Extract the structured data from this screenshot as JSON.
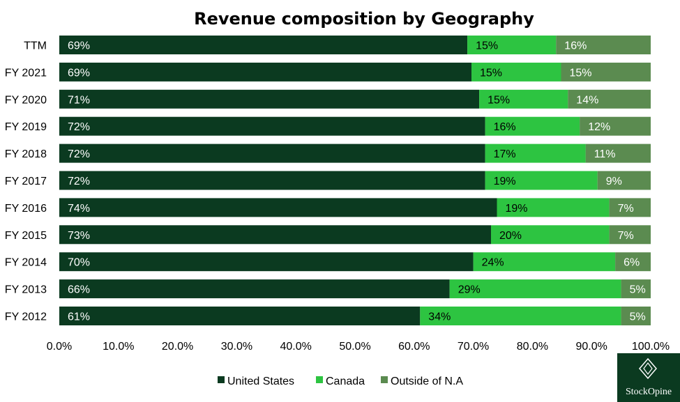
{
  "chart_data": {
    "type": "bar",
    "orientation": "horizontal",
    "stacked": "percent",
    "title": "Revenue composition by Geography",
    "categories": [
      "TTM",
      "FY 2021",
      "FY 2020",
      "FY 2019",
      "FY 2018",
      "FY 2017",
      "FY 2016",
      "FY 2015",
      "FY 2014",
      "FY 2013",
      "FY 2012"
    ],
    "series": [
      {
        "name": "United States",
        "color": "#0b3a20",
        "label_color": "#ffffff",
        "values": [
          69,
          69,
          71,
          72,
          72,
          72,
          74,
          73,
          70,
          66,
          61
        ],
        "labels": [
          "69%",
          "69%",
          "71%",
          "72%",
          "72%",
          "72%",
          "74%",
          "73%",
          "70%",
          "66%",
          "61%"
        ]
      },
      {
        "name": "Canada",
        "color": "#2dc441",
        "label_color": "#000000",
        "values": [
          15,
          15,
          15,
          16,
          17,
          19,
          19,
          20,
          24,
          29,
          34
        ],
        "labels": [
          "15%",
          "15%",
          "15%",
          "16%",
          "17%",
          "19%",
          "19%",
          "20%",
          "24%",
          "29%",
          "34%"
        ]
      },
      {
        "name": "Outside of N.A",
        "color": "#5b8b50",
        "label_color": "#ffffff",
        "values": [
          16,
          15,
          14,
          12,
          11,
          9,
          7,
          7,
          6,
          5,
          5
        ],
        "labels": [
          "16%",
          "15%",
          "14%",
          "12%",
          "11%",
          "9%",
          "7%",
          "7%",
          "6%",
          "5%",
          "5%"
        ]
      }
    ],
    "xlim": [
      0,
      100
    ],
    "xticks": [
      "0.0%",
      "10.0%",
      "20.0%",
      "30.0%",
      "40.0%",
      "50.0%",
      "60.0%",
      "70.0%",
      "80.0%",
      "90.0%",
      "100.0%"
    ],
    "grid": false,
    "legend": "bottom"
  },
  "logo": {
    "text": "StockOpine",
    "bg_color": "#0b3a20",
    "icon": "diamond-logo-icon"
  }
}
